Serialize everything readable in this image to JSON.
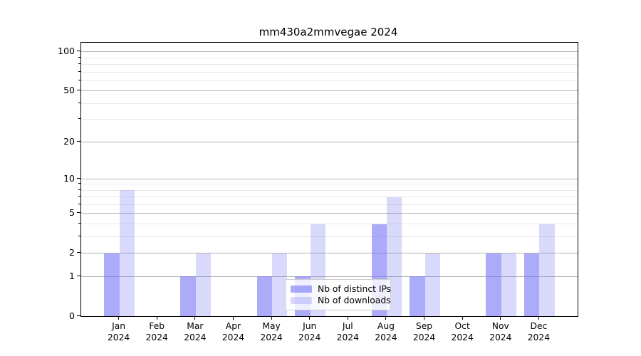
{
  "figure": {
    "background": "#ffffff"
  },
  "chart_data": {
    "type": "bar",
    "title": "mm430a2mmvegae 2024",
    "x_categories": [
      {
        "month": "Jan",
        "year": "2024"
      },
      {
        "month": "Feb",
        "year": "2024"
      },
      {
        "month": "Mar",
        "year": "2024"
      },
      {
        "month": "Apr",
        "year": "2024"
      },
      {
        "month": "May",
        "year": "2024"
      },
      {
        "month": "Jun",
        "year": "2024"
      },
      {
        "month": "Jul",
        "year": "2024"
      },
      {
        "month": "Aug",
        "year": "2024"
      },
      {
        "month": "Sep",
        "year": "2024"
      },
      {
        "month": "Oct",
        "year": "2024"
      },
      {
        "month": "Nov",
        "year": "2024"
      },
      {
        "month": "Dec",
        "year": "2024"
      }
    ],
    "series": [
      {
        "name": "Nb of distinct IPs",
        "color": "rgba(120,120,245,0.62)",
        "values": [
          2,
          0,
          1,
          0,
          1,
          1,
          0,
          4,
          1,
          0,
          2,
          2
        ]
      },
      {
        "name": "Nb of downloads",
        "color": "rgba(120,120,245,0.28)",
        "values": [
          8,
          0,
          2,
          0,
          2,
          4,
          0,
          7,
          2,
          0,
          2,
          4
        ]
      }
    ],
    "y_axis": {
      "scale": "log1p",
      "ticks": [
        0,
        1,
        2,
        5,
        10,
        20,
        50,
        100
      ],
      "minor_gridlines": [
        3,
        4,
        6,
        7,
        8,
        9,
        30,
        40,
        60,
        70,
        80,
        90
      ],
      "range": [
        0,
        117
      ]
    },
    "legend": {
      "position": "lower center-right",
      "entries": [
        "Nb of distinct IPs",
        "Nb of downloads"
      ]
    },
    "grid": {
      "enabled": true,
      "major_color": "#b3b3b3",
      "minor_color": "#e9e9e9"
    }
  }
}
